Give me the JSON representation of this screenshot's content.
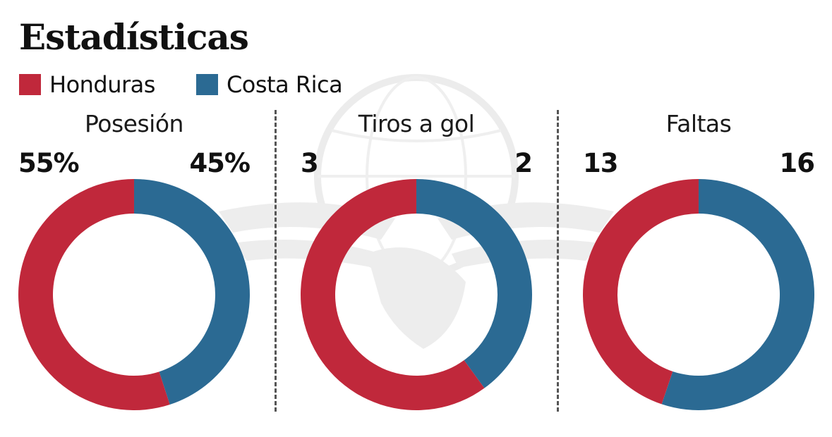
{
  "title": "Estadísticas",
  "legend": [
    {
      "label": "Honduras",
      "color": "#C0283B"
    },
    {
      "label": "Costa Rica",
      "color": "#2B6A93"
    }
  ],
  "panels": [
    {
      "title": "Posesión",
      "left_value": "55%",
      "right_value": "45%"
    },
    {
      "title": "Tiros a gol",
      "left_value": "3",
      "right_value": "2"
    },
    {
      "title": "Faltas",
      "left_value": "13",
      "right_value": "16"
    }
  ],
  "chart_data": [
    {
      "type": "pie",
      "subtype": "donut",
      "title": "Posesión",
      "categories": [
        "Honduras",
        "Costa Rica"
      ],
      "values": [
        55,
        45
      ],
      "unit": "%",
      "colors": [
        "#C0283B",
        "#2B6A93"
      ]
    },
    {
      "type": "pie",
      "subtype": "donut",
      "title": "Tiros a gol",
      "categories": [
        "Honduras",
        "Costa Rica"
      ],
      "values": [
        3,
        2
      ],
      "colors": [
        "#C0283B",
        "#2B6A93"
      ]
    },
    {
      "type": "pie",
      "subtype": "donut",
      "title": "Faltas",
      "categories": [
        "Honduras",
        "Costa Rica"
      ],
      "values": [
        13,
        16
      ],
      "colors": [
        "#C0283B",
        "#2B6A93"
      ]
    }
  ]
}
